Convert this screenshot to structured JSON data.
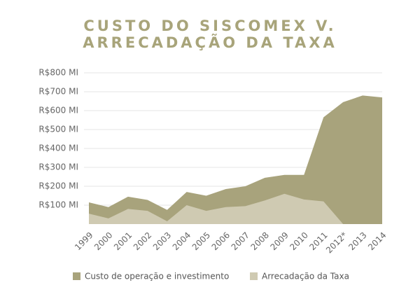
{
  "chart_data": {
    "type": "area",
    "title": [
      "CUSTO DO SISCOMEX V.",
      "ARRECADAÇÃO DA TAXA"
    ],
    "categories": [
      "1999",
      "2000",
      "2001",
      "2002",
      "2003",
      "2004",
      "2005",
      "2006",
      "2007",
      "2008",
      "2009",
      "2010",
      "2011",
      "2012*",
      "2013",
      "2014"
    ],
    "series": [
      {
        "name": "Custo de operação e investimento",
        "color": "#a8a37c",
        "values": [
          115,
          90,
          145,
          128,
          75,
          170,
          150,
          185,
          200,
          245,
          260,
          260,
          565,
          645,
          680,
          670
        ]
      },
      {
        "name": "Arrecadação da Taxa",
        "color": "#cfcab2",
        "values": [
          55,
          30,
          80,
          70,
          15,
          100,
          70,
          90,
          95,
          125,
          160,
          130,
          120,
          0,
          null,
          null
        ]
      }
    ],
    "ylim": [
      0,
      800
    ],
    "yticks": [
      {
        "value": 100,
        "label": "R$100 MI"
      },
      {
        "value": 200,
        "label": "R$200 MI"
      },
      {
        "value": 300,
        "label": "R$300 MI"
      },
      {
        "value": 400,
        "label": "R$400 MI"
      },
      {
        "value": 500,
        "label": "R$500 MI"
      },
      {
        "value": 600,
        "label": "R$600 MI"
      },
      {
        "value": 700,
        "label": "R$700 MI"
      },
      {
        "value": 800,
        "label": "R$800 MI"
      }
    ],
    "grid": true
  }
}
